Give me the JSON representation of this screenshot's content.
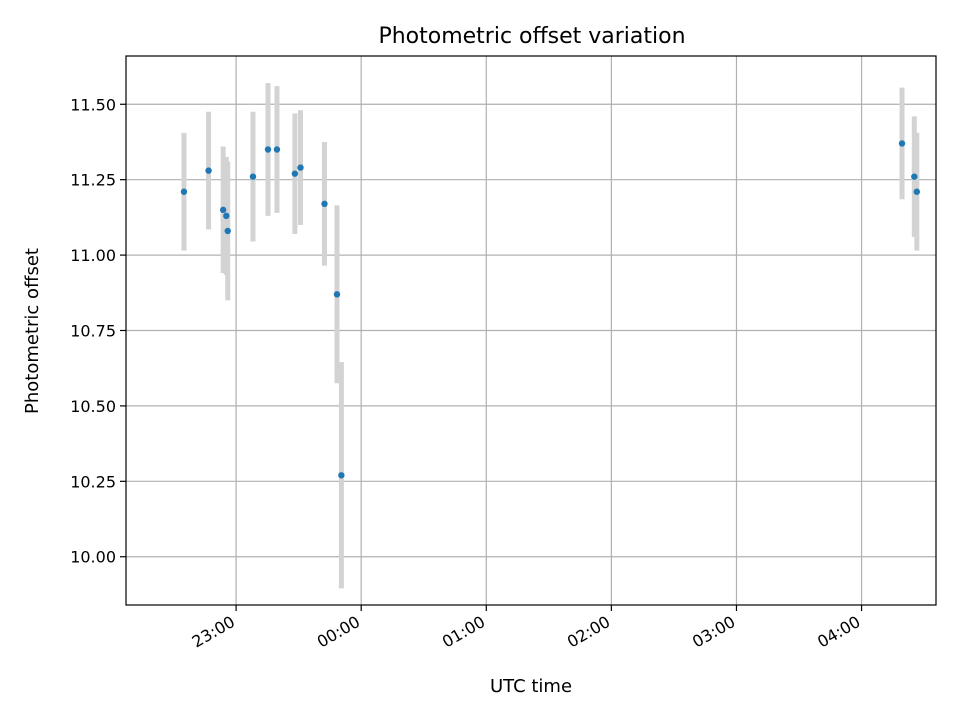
{
  "chart_data": {
    "type": "scatter",
    "title": "Photometric offset variation",
    "xlabel": "UTC time",
    "ylabel": "Photometric offset",
    "x_ticks": [
      "23:00",
      "00:00",
      "01:00",
      "02:00",
      "03:00",
      "04:00"
    ],
    "x_tick_minutes": [
      1380,
      1440,
      1500,
      1560,
      1620,
      1680
    ],
    "xlim_minutes": [
      1327.2,
      1715.7
    ],
    "y_ticks": [
      "10.00",
      "10.25",
      "10.50",
      "10.75",
      "11.00",
      "11.25",
      "11.50"
    ],
    "y_tick_values": [
      10.0,
      10.25,
      10.5,
      10.75,
      11.0,
      11.25,
      11.5
    ],
    "ylim": [
      9.84,
      11.66
    ],
    "grid": true,
    "marker_color": "#1f77b4",
    "errorbar_color": "#d3d3d3",
    "points": [
      {
        "time": "22:35",
        "minutes": 1355.0,
        "y": 11.21,
        "err": 0.195
      },
      {
        "time": "22:47",
        "minutes": 1366.8,
        "y": 11.28,
        "err": 0.195
      },
      {
        "time": "22:53",
        "minutes": 1373.8,
        "y": 11.15,
        "err": 0.21
      },
      {
        "time": "22:55",
        "minutes": 1375.3,
        "y": 11.13,
        "err": 0.195
      },
      {
        "time": "22:56",
        "minutes": 1376.0,
        "y": 11.08,
        "err": 0.23
      },
      {
        "time": "23:08",
        "minutes": 1388.1,
        "y": 11.26,
        "err": 0.215
      },
      {
        "time": "23:15",
        "minutes": 1395.3,
        "y": 11.35,
        "err": 0.22
      },
      {
        "time": "23:20",
        "minutes": 1399.6,
        "y": 11.35,
        "err": 0.21
      },
      {
        "time": "23:28",
        "minutes": 1408.2,
        "y": 11.27,
        "err": 0.2
      },
      {
        "time": "23:31",
        "minutes": 1410.9,
        "y": 11.29,
        "err": 0.19
      },
      {
        "time": "23:42",
        "minutes": 1422.4,
        "y": 11.17,
        "err": 0.205
      },
      {
        "time": "23:48",
        "minutes": 1428.4,
        "y": 10.87,
        "err": 0.295
      },
      {
        "time": "23:50",
        "minutes": 1430.5,
        "y": 10.27,
        "err": 0.375
      },
      {
        "time": "04:19",
        "minutes": 1699.4,
        "y": 11.37,
        "err": 0.185
      },
      {
        "time": "04:25",
        "minutes": 1705.3,
        "y": 11.26,
        "err": 0.2
      },
      {
        "time": "04:26",
        "minutes": 1706.5,
        "y": 11.21,
        "err": 0.195
      }
    ]
  }
}
